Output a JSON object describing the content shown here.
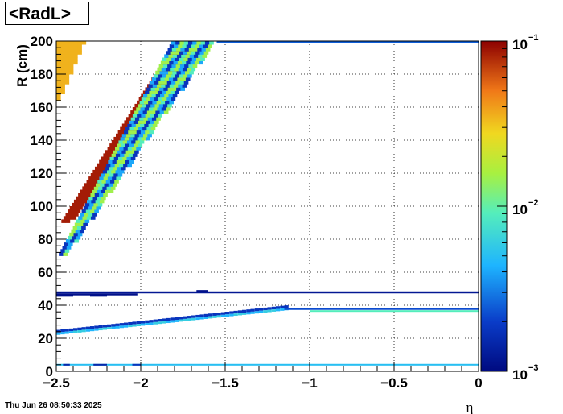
{
  "chart_data": {
    "type": "heatmap",
    "title": "<RadL>",
    "xlabel": "η",
    "ylabel": "R (cm)",
    "xlim": [
      -2.5,
      0
    ],
    "ylim": [
      0,
      200
    ],
    "x_ticks": [
      "−2.5",
      "−2",
      "−1.5",
      "−1",
      "−0.5",
      "0"
    ],
    "y_ticks": [
      "0",
      "20",
      "40",
      "60",
      "80",
      "100",
      "120",
      "140",
      "160",
      "180",
      "200"
    ],
    "colorbar": {
      "scale": "log",
      "range": [
        0.001,
        0.1
      ],
      "tick_labels": [
        {
          "base": "10",
          "exp": "−3"
        },
        {
          "base": "10",
          "exp": "−2"
        },
        {
          "base": "10",
          "exp": "−1"
        }
      ]
    },
    "grid": true,
    "regions": [
      {
        "feature": "barrel layer R≈4",
        "eta": [
          -2.5,
          0
        ],
        "r": [
          3.5,
          4.5
        ],
        "value": 0.005
      },
      {
        "feature": "barrel layer R≈4 start",
        "eta": [
          -2.5,
          -2.2
        ],
        "r": [
          3.5,
          4.5
        ],
        "value": 0.0015
      },
      {
        "feature": "inner layer",
        "eta": [
          -2.5,
          -1.5
        ],
        "r": [
          23,
          26
        ],
        "value": 0.0022
      },
      {
        "feature": "inner layer",
        "eta": [
          -1.5,
          0
        ],
        "r": [
          37,
          38.5
        ],
        "value": 0.004
      },
      {
        "feature": "layer R≈48",
        "eta": [
          -2.5,
          0
        ],
        "r": [
          47,
          49
        ],
        "value": 0.0012
      },
      {
        "feature": "outer band",
        "eta": [
          -2.4,
          -1.73
        ],
        "r": [
          90,
          200
        ],
        "value": 0.09
      },
      {
        "feature": "inner band",
        "eta": [
          -2.48,
          -1.55
        ],
        "r": [
          70,
          200
        ],
        "value": 0.003
      },
      {
        "feature": "corner",
        "eta": [
          -2.5,
          -2.35
        ],
        "r": [
          165,
          200
        ],
        "value": 0.035
      },
      {
        "feature": "top edge R=200",
        "eta": [
          -1.55,
          0
        ],
        "r": [
          199,
          200
        ],
        "value": 0.0025
      }
    ]
  },
  "footer": {
    "timestamp": "Thu Jun 26 08:50:33 2025"
  }
}
